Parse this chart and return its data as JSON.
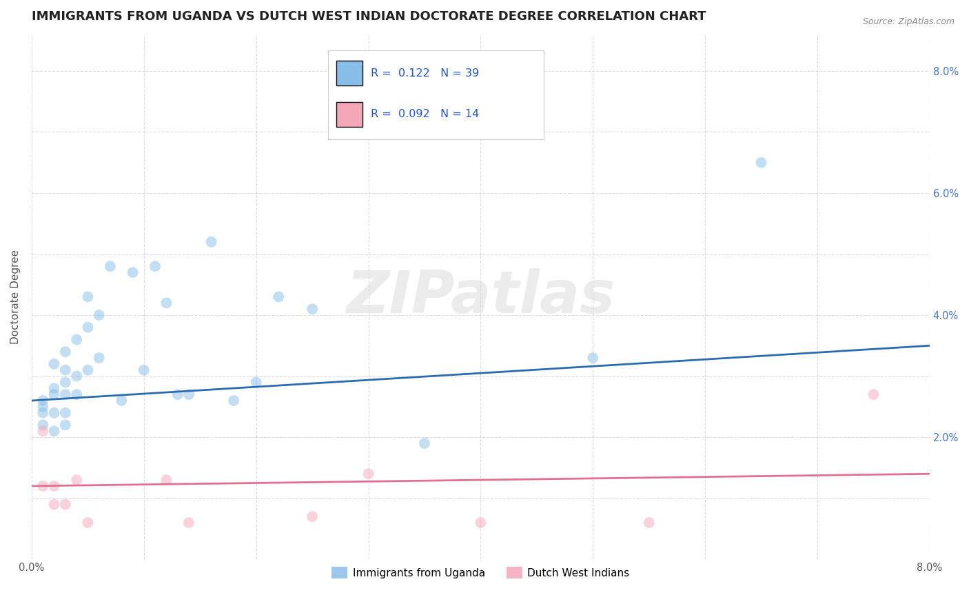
{
  "title": "IMMIGRANTS FROM UGANDA VS DUTCH WEST INDIAN DOCTORATE DEGREE CORRELATION CHART",
  "source": "Source: ZipAtlas.com",
  "ylabel": "Doctorate Degree",
  "xlim": [
    0.0,
    0.08
  ],
  "ylim": [
    0.0,
    0.086
  ],
  "blue_color": "#88bde8",
  "pink_color": "#f4a7b9",
  "blue_line_color": "#2b6cb0",
  "pink_line_color": "#e07090",
  "watermark_zip": "ZIP",
  "watermark_atlas": "atlas",
  "legend_R1": "0.122",
  "legend_N1": "39",
  "legend_R2": "0.092",
  "legend_N2": "14",
  "legend_label1": "Immigrants from Uganda",
  "legend_label2": "Dutch West Indians",
  "blue_x": [
    0.001,
    0.001,
    0.001,
    0.001,
    0.002,
    0.002,
    0.002,
    0.002,
    0.002,
    0.003,
    0.003,
    0.003,
    0.003,
    0.003,
    0.003,
    0.004,
    0.004,
    0.004,
    0.005,
    0.005,
    0.005,
    0.006,
    0.006,
    0.007,
    0.008,
    0.009,
    0.01,
    0.011,
    0.012,
    0.013,
    0.014,
    0.016,
    0.018,
    0.02,
    0.022,
    0.025,
    0.035,
    0.05,
    0.065
  ],
  "blue_y": [
    0.026,
    0.025,
    0.024,
    0.022,
    0.032,
    0.028,
    0.027,
    0.024,
    0.021,
    0.034,
    0.031,
    0.029,
    0.027,
    0.024,
    0.022,
    0.036,
    0.03,
    0.027,
    0.043,
    0.038,
    0.031,
    0.04,
    0.033,
    0.048,
    0.026,
    0.047,
    0.031,
    0.048,
    0.042,
    0.027,
    0.027,
    0.052,
    0.026,
    0.029,
    0.043,
    0.041,
    0.019,
    0.033,
    0.065
  ],
  "pink_x": [
    0.001,
    0.001,
    0.002,
    0.002,
    0.003,
    0.004,
    0.005,
    0.012,
    0.014,
    0.025,
    0.03,
    0.04,
    0.055,
    0.075
  ],
  "pink_y": [
    0.021,
    0.012,
    0.012,
    0.009,
    0.009,
    0.013,
    0.006,
    0.013,
    0.006,
    0.007,
    0.014,
    0.006,
    0.006,
    0.027
  ],
  "dot_size": 130,
  "dot_alpha": 0.5,
  "background_color": "#ffffff",
  "grid_color": "#cccccc",
  "title_color": "#222222",
  "title_fontsize": 13,
  "axis_label_fontsize": 11,
  "tick_fontsize": 10.5,
  "blue_trend_x0": 0.0,
  "blue_trend_y0": 0.026,
  "blue_trend_x1": 0.08,
  "blue_trend_y1": 0.035,
  "pink_trend_x0": 0.0,
  "pink_trend_y0": 0.012,
  "pink_trend_x1": 0.08,
  "pink_trend_y1": 0.014
}
